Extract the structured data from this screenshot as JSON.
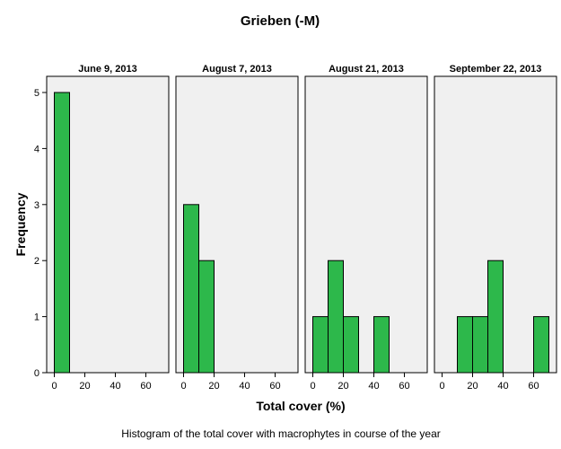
{
  "chart_data": {
    "type": "bar",
    "title": "Grieben (-M)",
    "xlabel": "Total cover (%)",
    "ylabel": "Frequency",
    "caption": "Histogram of the total cover with macrophytes in course of the year",
    "xlim": [
      -5,
      75
    ],
    "ylim": [
      0,
      5.2
    ],
    "xticks": [
      0,
      20,
      40,
      60
    ],
    "yticks": [
      0,
      1,
      2,
      3,
      4,
      5
    ],
    "bin_width": 10,
    "bar_color": "#2db84b",
    "panel_background": "#f0f0f0",
    "panels": [
      {
        "title": "June 9, 2013",
        "bins": [
          {
            "x0": 0,
            "x1": 10,
            "count": 5
          }
        ]
      },
      {
        "title": "August 7, 2013",
        "bins": [
          {
            "x0": 0,
            "x1": 10,
            "count": 3
          },
          {
            "x0": 10,
            "x1": 20,
            "count": 2
          }
        ]
      },
      {
        "title": "August 21, 2013",
        "bins": [
          {
            "x0": 0,
            "x1": 10,
            "count": 1
          },
          {
            "x0": 10,
            "x1": 20,
            "count": 2
          },
          {
            "x0": 20,
            "x1": 30,
            "count": 1
          },
          {
            "x0": 40,
            "x1": 50,
            "count": 1
          }
        ]
      },
      {
        "title": "September 22, 2013",
        "bins": [
          {
            "x0": 10,
            "x1": 20,
            "count": 1
          },
          {
            "x0": 20,
            "x1": 30,
            "count": 1
          },
          {
            "x0": 30,
            "x1": 40,
            "count": 2
          },
          {
            "x0": 60,
            "x1": 70,
            "count": 1
          }
        ]
      }
    ]
  }
}
